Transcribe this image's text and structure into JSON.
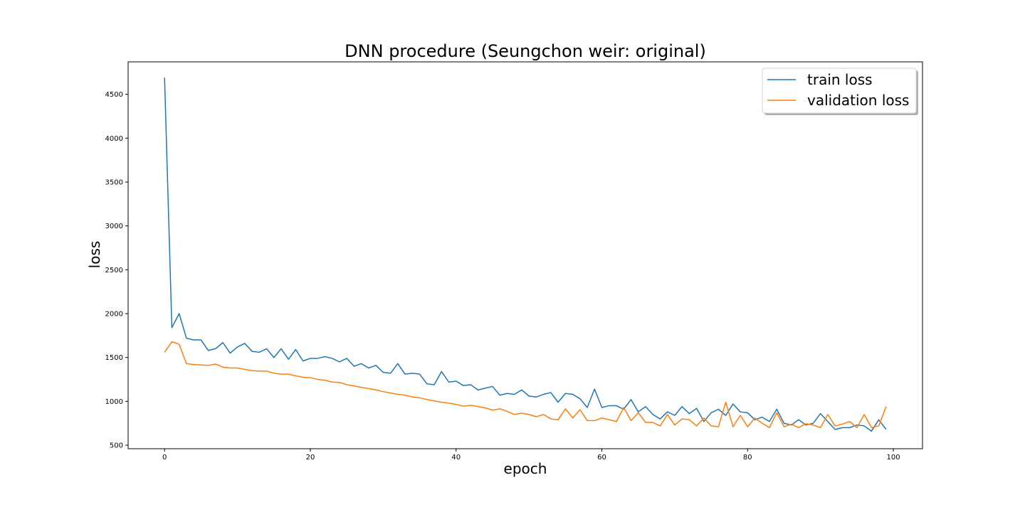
{
  "chart_data": {
    "type": "line",
    "title": "DNN procedure (Seungchon weir: original)",
    "xlabel": "epoch",
    "ylabel": "loss",
    "xlim": [
      -5,
      104
    ],
    "ylim": [
      460,
      4870
    ],
    "xticks": [
      0,
      20,
      40,
      60,
      80,
      100
    ],
    "yticks": [
      500,
      1000,
      1500,
      2000,
      2500,
      3000,
      3500,
      4000,
      4500
    ],
    "grid": false,
    "legend_position": "top-right",
    "x": [
      0,
      1,
      2,
      3,
      4,
      5,
      6,
      7,
      8,
      9,
      10,
      11,
      12,
      13,
      14,
      15,
      16,
      17,
      18,
      19,
      20,
      21,
      22,
      23,
      24,
      25,
      26,
      27,
      28,
      29,
      30,
      31,
      32,
      33,
      34,
      35,
      36,
      37,
      38,
      39,
      40,
      41,
      42,
      43,
      44,
      45,
      46,
      47,
      48,
      49,
      50,
      51,
      52,
      53,
      54,
      55,
      56,
      57,
      58,
      59,
      60,
      61,
      62,
      63,
      64,
      65,
      66,
      67,
      68,
      69,
      70,
      71,
      72,
      73,
      74,
      75,
      76,
      77,
      78,
      79,
      80,
      81,
      82,
      83,
      84,
      85,
      86,
      87,
      88,
      89,
      90,
      91,
      92,
      93,
      94,
      95,
      96,
      97,
      98,
      99
    ],
    "series": [
      {
        "name": "train loss",
        "color": "#1f77b4",
        "values": [
          4690,
          1840,
          2000,
          1720,
          1700,
          1700,
          1580,
          1600,
          1670,
          1550,
          1620,
          1660,
          1570,
          1560,
          1600,
          1500,
          1600,
          1480,
          1590,
          1460,
          1490,
          1490,
          1510,
          1490,
          1450,
          1490,
          1400,
          1430,
          1380,
          1410,
          1330,
          1320,
          1430,
          1310,
          1320,
          1310,
          1200,
          1190,
          1340,
          1220,
          1230,
          1180,
          1190,
          1130,
          1150,
          1170,
          1070,
          1090,
          1080,
          1130,
          1060,
          1050,
          1080,
          1100,
          990,
          1090,
          1080,
          1030,
          930,
          1140,
          930,
          950,
          950,
          910,
          1020,
          880,
          940,
          850,
          800,
          880,
          840,
          940,
          860,
          920,
          770,
          870,
          910,
          840,
          970,
          880,
          870,
          790,
          820,
          770,
          910,
          750,
          730,
          790,
          730,
          750,
          860,
          770,
          680,
          700,
          700,
          730,
          720,
          660,
          790,
          680
        ]
      },
      {
        "name": "validation loss",
        "color": "#ff7f0e",
        "values": [
          1560,
          1680,
          1650,
          1430,
          1420,
          1415,
          1410,
          1425,
          1390,
          1380,
          1380,
          1365,
          1350,
          1345,
          1345,
          1320,
          1310,
          1310,
          1290,
          1275,
          1270,
          1250,
          1240,
          1220,
          1215,
          1190,
          1175,
          1160,
          1145,
          1130,
          1110,
          1095,
          1080,
          1070,
          1050,
          1040,
          1020,
          1005,
          990,
          980,
          965,
          945,
          955,
          940,
          925,
          900,
          915,
          885,
          850,
          865,
          850,
          825,
          850,
          800,
          790,
          915,
          810,
          905,
          780,
          780,
          810,
          790,
          770,
          930,
          780,
          870,
          760,
          760,
          720,
          850,
          730,
          800,
          790,
          720,
          810,
          720,
          710,
          990,
          710,
          840,
          710,
          810,
          750,
          700,
          870,
          710,
          740,
          700,
          745,
          730,
          700,
          850,
          720,
          740,
          770,
          700,
          850,
          700,
          720,
          940
        ]
      }
    ]
  }
}
